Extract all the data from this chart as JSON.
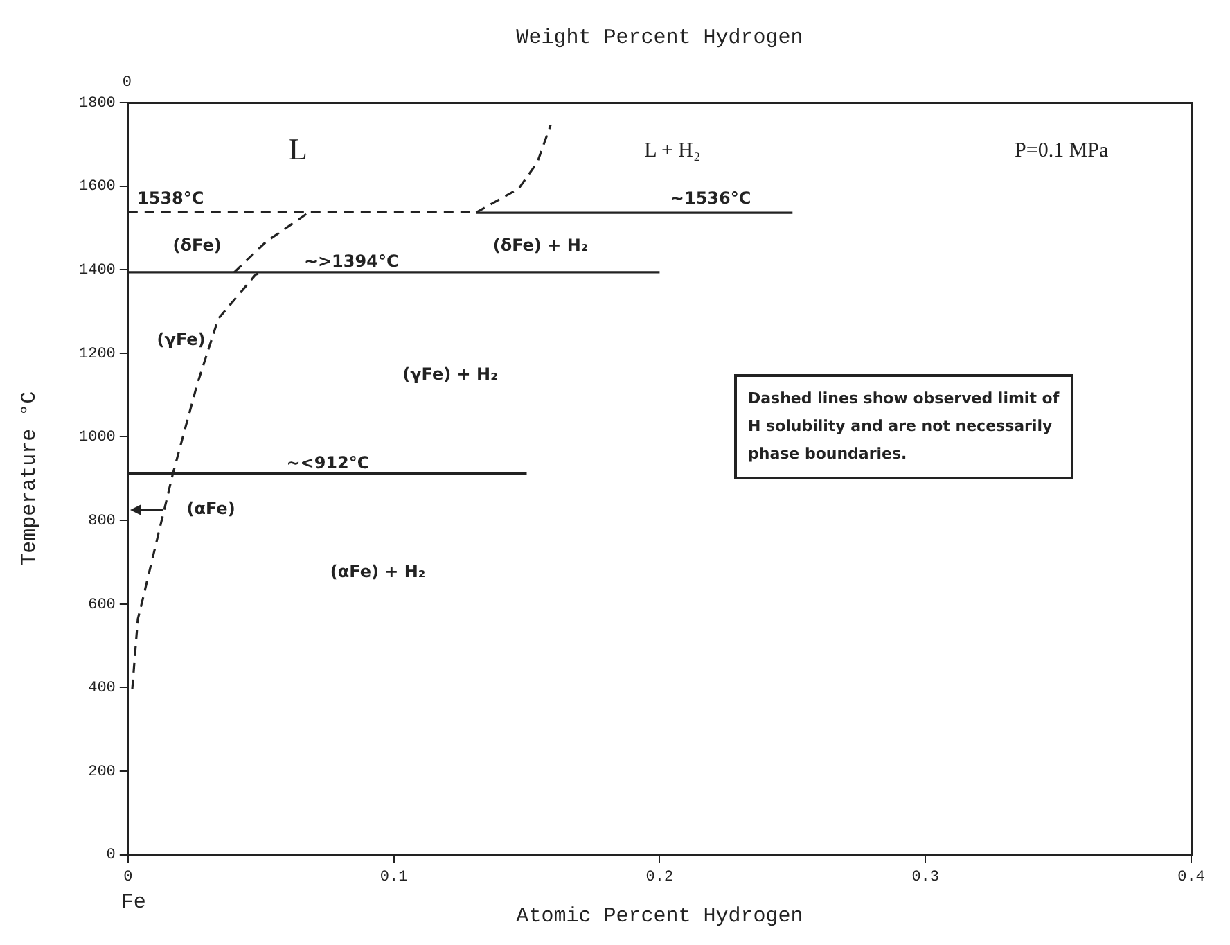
{
  "chart_data": {
    "type": "line",
    "xlabel": "Atomic Percent Hydrogen",
    "ylabel": "Temperature °C",
    "x2label": "Weight Percent Hydrogen",
    "xlim": [
      0,
      0.4
    ],
    "xticks": [
      0,
      0.1,
      0.2,
      0.3,
      0.4
    ],
    "ylim": [
      0,
      1800
    ],
    "yticks": [
      0,
      200,
      400,
      600,
      800,
      1000,
      1200,
      1400,
      1600,
      1800
    ],
    "grid": false,
    "legend": false,
    "marker": "none",
    "series": [
      {
        "color": "#222222",
        "line_style": "dashed",
        "x": [
          0.0016,
          0.0037,
          0.0053,
          0.0169,
          0.026,
          0.034,
          0.048,
          0.05
        ],
        "values": [
          396,
          564,
          605,
          912,
          1125,
          1283,
          1388,
          1394
        ]
      },
      {
        "color": "#222222",
        "line_style": "dashed",
        "x": [
          0.04,
          0.052,
          0.068
        ],
        "values": [
          1394,
          1467,
          1537
        ]
      },
      {
        "color": "#222222",
        "line_style": "dashed",
        "x": [
          0.131,
          0.147,
          0.154,
          0.159
        ],
        "values": [
          1537,
          1594,
          1657,
          1746
        ]
      },
      {
        "color": "#222222",
        "line_style": "dashed",
        "x": [
          0,
          0.131
        ],
        "values": [
          1538,
          1538
        ]
      },
      {
        "color": "#222222",
        "line_style": "solid",
        "x": [
          0.131,
          0.25
        ],
        "values": [
          1536,
          1536
        ]
      },
      {
        "color": "#222222",
        "line_style": "solid",
        "x": [
          0,
          0.2
        ],
        "values": [
          1394,
          1394
        ]
      },
      {
        "color": "#222222",
        "line_style": "solid",
        "x": [
          0,
          0.15
        ],
        "values": [
          912,
          912
        ]
      }
    ],
    "annotations": [
      "Fe",
      "Dashed lines show observed limit of H solubility and are not necessarily phase boundaries.",
      "0",
      "L",
      "L + H₂",
      "P=0.1 MPa",
      "1538°C",
      "~1536°C",
      "(δFe)",
      "(δFe) + H₂",
      "~>1394°C",
      "(γFe)",
      "(γFe) + H₂",
      "~<912°C",
      "(αFe)",
      "(αFe) + H₂"
    ]
  }
}
